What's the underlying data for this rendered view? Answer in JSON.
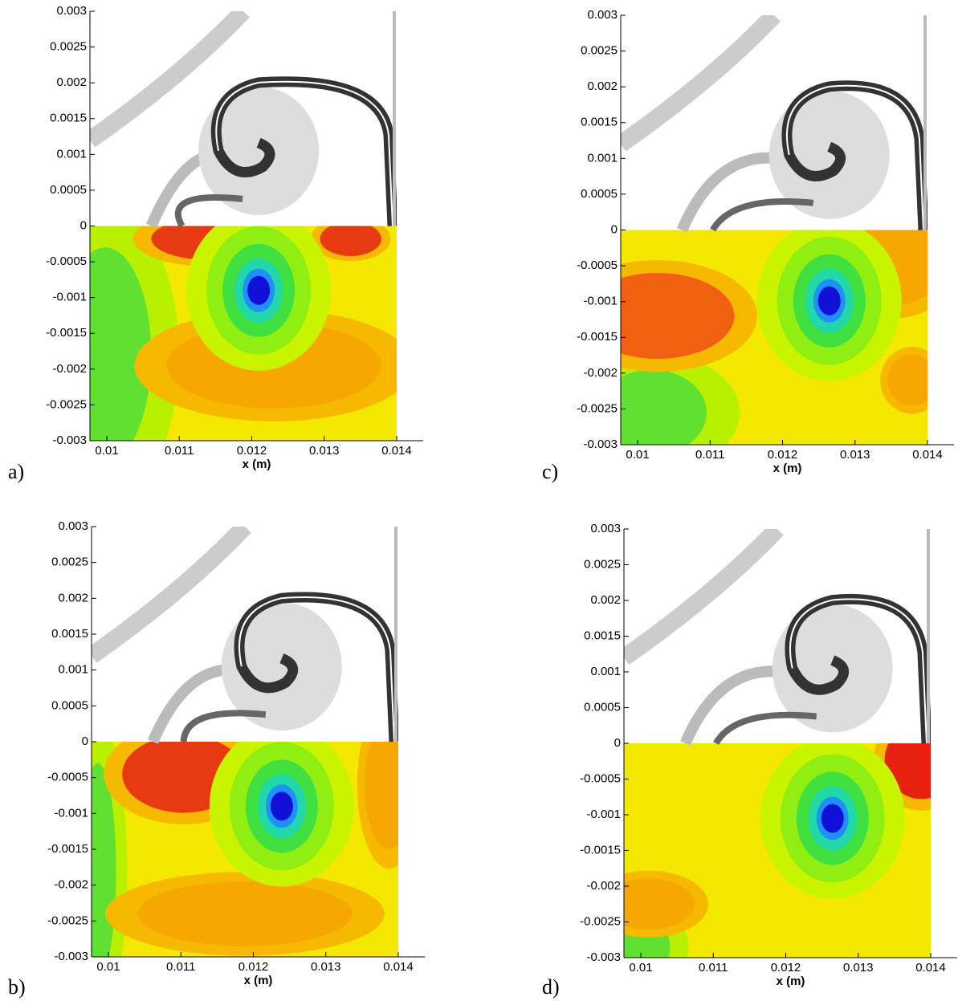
{
  "chart_data": [
    {
      "type": "contour",
      "panel_label": "a)",
      "xlabel": "x (m)",
      "xlim": [
        0.009767,
        0.014366
      ],
      "ylim": [
        -0.003,
        0.003
      ],
      "xticks": [
        0.01,
        0.011,
        0.012,
        0.013,
        0.014
      ],
      "yticks": [
        -0.003,
        -0.0025,
        -0.002,
        -0.0015,
        -0.001,
        -0.0005,
        0,
        0.0005,
        0.001,
        0.0015,
        0.002,
        0.0025,
        0.003
      ]
    },
    {
      "type": "contour",
      "panel_label": "b)",
      "xlabel": "x (m)",
      "xlim": [
        0.009767,
        0.014366
      ],
      "ylim": [
        -0.003,
        0.003
      ],
      "xticks": [
        0.01,
        0.011,
        0.012,
        0.013,
        0.014
      ],
      "yticks": [
        -0.003,
        -0.0025,
        -0.002,
        -0.0015,
        -0.001,
        -0.0005,
        0,
        0.0005,
        0.001,
        0.0015,
        0.002,
        0.0025,
        0.003
      ]
    },
    {
      "type": "contour",
      "panel_label": "c)",
      "xlabel": "x (m)",
      "xlim": [
        0.009767,
        0.014366
      ],
      "ylim": [
        -0.003,
        0.003
      ],
      "xticks": [
        0.01,
        0.011,
        0.012,
        0.013,
        0.014
      ],
      "yticks": [
        -0.003,
        -0.0025,
        -0.002,
        -0.0015,
        -0.001,
        -0.0005,
        0,
        0.0005,
        0.001,
        0.0015,
        0.002,
        0.0025,
        0.003
      ]
    },
    {
      "type": "contour",
      "panel_label": "d)",
      "xlabel": "x (m)",
      "xlim": [
        0.009767,
        0.014366
      ],
      "ylim": [
        -0.003,
        0.003
      ],
      "xticks": [
        0.01,
        0.011,
        0.012,
        0.013,
        0.014
      ],
      "yticks": [
        -0.003,
        -0.0025,
        -0.002,
        -0.0015,
        -0.001,
        -0.0005,
        0,
        0.0005,
        0.001,
        0.0015,
        0.002,
        0.0025,
        0.003
      ]
    }
  ]
}
